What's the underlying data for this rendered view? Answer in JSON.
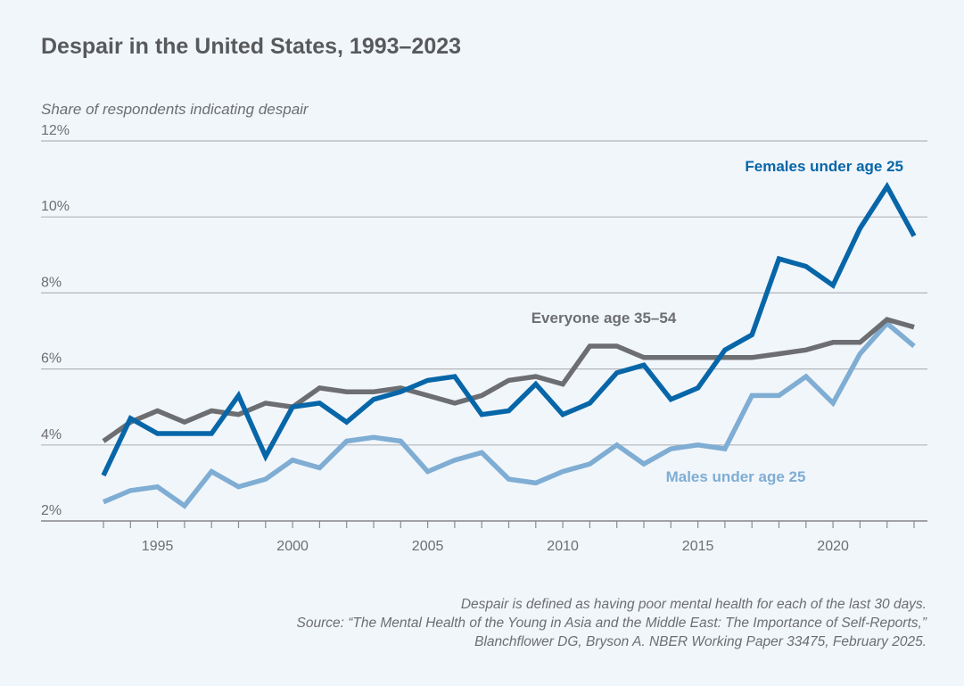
{
  "title": "Despair in the United States, 1993–2023",
  "notes": [
    "Despair is defined as having poor mental health for each of the last 30 days.",
    "Source: “The Mental Health of the Young in Asia and the Middle East: The Importance of Self-Reports,”",
    "Blanchflower DG, Bryson A. NBER Working Paper 33475, February 2025."
  ],
  "colors": {
    "background": "#f1f6fb",
    "females": "#0766a8",
    "everyone": "#6d6e71",
    "males": "#7fadd3",
    "grid": "#b3b5b8"
  },
  "chart_data": {
    "type": "line",
    "title": "Despair in the United States, 1993–2023",
    "ylabel": "Share of respondents indicating despair",
    "xlabel": "",
    "xlim": [
      1993,
      2023
    ],
    "ylim": [
      2,
      12
    ],
    "xticks": [
      1995,
      2000,
      2005,
      2010,
      2015,
      2020
    ],
    "yticks": [
      2,
      4,
      6,
      8,
      10,
      12
    ],
    "ytick_labels": [
      "2%",
      "4%",
      "6%",
      "8%",
      "10%",
      "12%"
    ],
    "grid": "horizontal",
    "legend": "direct labels",
    "x": [
      1993,
      1994,
      1995,
      1996,
      1997,
      1998,
      1999,
      2000,
      2001,
      2002,
      2003,
      2004,
      2005,
      2006,
      2007,
      2008,
      2009,
      2010,
      2011,
      2012,
      2013,
      2014,
      2015,
      2016,
      2017,
      2018,
      2019,
      2020,
      2021,
      2022,
      2023
    ],
    "series": [
      {
        "name": "Females under age 25",
        "color": "#0766a8",
        "values": [
          3.2,
          4.7,
          4.3,
          4.3,
          4.3,
          5.3,
          3.7,
          5.0,
          5.1,
          4.6,
          5.2,
          5.4,
          5.7,
          5.8,
          4.8,
          4.9,
          5.6,
          4.8,
          5.1,
          5.9,
          6.1,
          5.2,
          5.5,
          6.5,
          6.9,
          8.9,
          8.7,
          8.2,
          9.7,
          10.8,
          9.5
        ]
      },
      {
        "name": "Everyone age 35–54",
        "color": "#6d6e71",
        "values": [
          4.1,
          4.6,
          4.9,
          4.6,
          4.9,
          4.8,
          5.1,
          5.0,
          5.5,
          5.4,
          5.4,
          5.5,
          5.3,
          5.1,
          5.3,
          5.7,
          5.8,
          5.6,
          6.6,
          6.6,
          6.3,
          6.3,
          6.3,
          6.3,
          6.3,
          6.4,
          6.5,
          6.7,
          6.7,
          7.3,
          7.1
        ]
      },
      {
        "name": "Males under age 25",
        "color": "#7fadd3",
        "values": [
          2.5,
          2.8,
          2.9,
          2.4,
          3.3,
          2.9,
          3.1,
          3.6,
          3.4,
          4.1,
          4.2,
          4.1,
          3.3,
          3.6,
          3.8,
          3.1,
          3.0,
          3.3,
          3.5,
          4.0,
          3.5,
          3.9,
          4.0,
          3.9,
          5.3,
          5.3,
          5.8,
          5.1,
          6.4,
          7.2,
          6.6
        ]
      }
    ]
  }
}
